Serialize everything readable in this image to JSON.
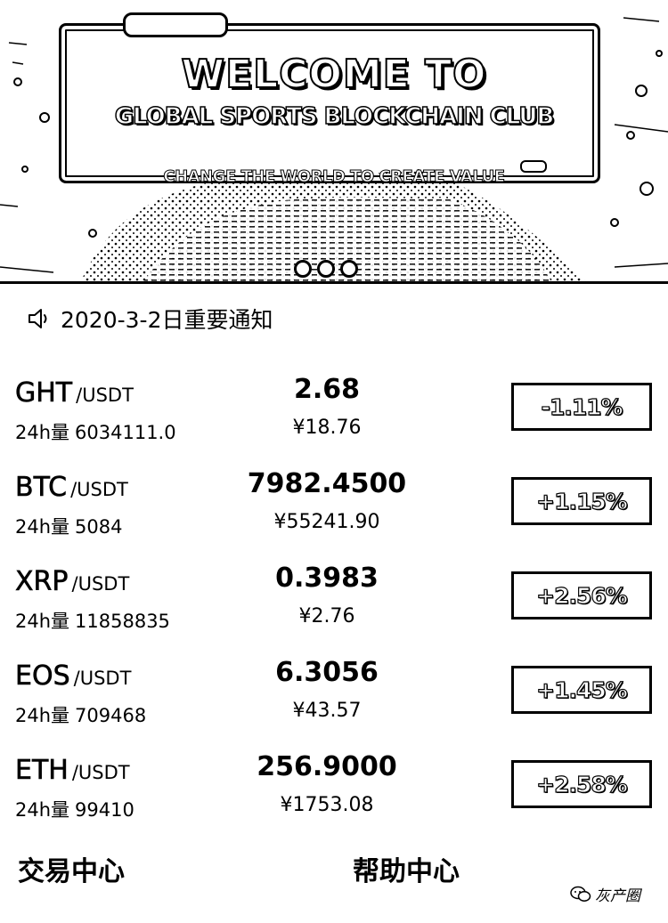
{
  "banner": {
    "headline": "WELCOME TO",
    "club_name": "GLOBAL SPORTS BLOCKCHAIN CLUB",
    "slogan": "CHANGE THE WORLD TO CREATE VALUE",
    "slide_count": 3
  },
  "notice": {
    "icon": "speaker-icon",
    "text": "2020-3-2日重要通知"
  },
  "market": {
    "volume_label": "24h量",
    "rows": [
      {
        "base": "GHT",
        "quote": "/USDT",
        "volume": "6034111.0",
        "price": "2.68",
        "cny": "¥18.76",
        "change": "-1.11%"
      },
      {
        "base": "BTC",
        "quote": "/USDT",
        "volume": "5084",
        "price": "7982.4500",
        "cny": "¥55241.90",
        "change": "+1.15%"
      },
      {
        "base": "XRP",
        "quote": "/USDT",
        "volume": "11858835",
        "price": "0.3983",
        "cny": "¥2.76",
        "change": "+2.56%"
      },
      {
        "base": "EOS",
        "quote": "/USDT",
        "volume": "709468",
        "price": "6.3056",
        "cny": "¥43.57",
        "change": "+1.45%"
      },
      {
        "base": "ETH",
        "quote": "/USDT",
        "volume": "99410",
        "price": "256.9000",
        "cny": "¥1753.08",
        "change": "+2.58%"
      }
    ]
  },
  "nav": {
    "trade_center": "交易中心",
    "help_center": "帮助中心"
  },
  "watermark": {
    "icon": "wechat-icon",
    "text": "灰产圈"
  }
}
